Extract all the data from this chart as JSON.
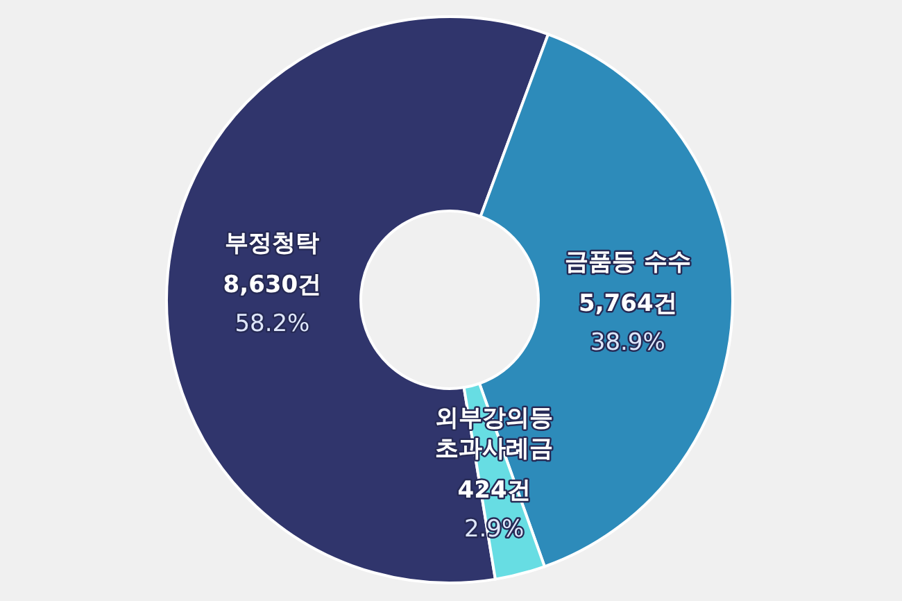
{
  "chart_data": {
    "type": "donut",
    "categories": [
      "부정청탁",
      "금품등 수수",
      "외부강의등 초과사례금"
    ],
    "values": [
      8630,
      5764,
      424
    ],
    "colors": [
      "#30356c",
      "#2d8bba",
      "#67dde3"
    ],
    "value_labels": [
      "8,630건\n58.2%",
      "5,764건\n38.9%",
      "424건\n2.9%"
    ]
  }
}
